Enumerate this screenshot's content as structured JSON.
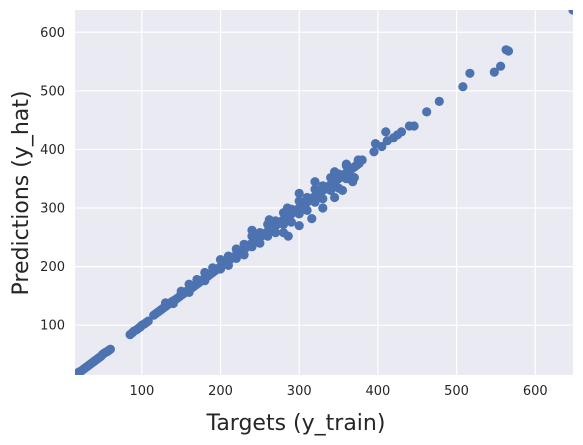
{
  "chart_data": {
    "type": "scatter",
    "title": "",
    "xlabel": "Targets (y_train)",
    "ylabel": "Predictions (y_hat)",
    "xlim": [
      15,
      648
    ],
    "ylim": [
      15,
      638
    ],
    "xticks": [
      100,
      200,
      300,
      400,
      500,
      600
    ],
    "yticks": [
      100,
      200,
      300,
      400,
      500,
      600
    ],
    "grid": true,
    "colors": {
      "background": "#eaeaf2",
      "grid": "#ffffff",
      "points": "#4c72b0"
    },
    "series": [
      {
        "points": [
          [
            18,
            18
          ],
          [
            20,
            20
          ],
          [
            22,
            21
          ],
          [
            24,
            23
          ],
          [
            26,
            25
          ],
          [
            28,
            27
          ],
          [
            30,
            29
          ],
          [
            32,
            31
          ],
          [
            34,
            33
          ],
          [
            36,
            35
          ],
          [
            38,
            37
          ],
          [
            40,
            39
          ],
          [
            42,
            41
          ],
          [
            44,
            43
          ],
          [
            46,
            45
          ],
          [
            48,
            47
          ],
          [
            50,
            50
          ],
          [
            52,
            52
          ],
          [
            54,
            54
          ],
          [
            56,
            55
          ],
          [
            58,
            57
          ],
          [
            60,
            59
          ],
          [
            85,
            84
          ],
          [
            88,
            87
          ],
          [
            90,
            90
          ],
          [
            93,
            92
          ],
          [
            96,
            95
          ],
          [
            98,
            97
          ],
          [
            100,
            100
          ],
          [
            103,
            102
          ],
          [
            106,
            105
          ],
          [
            108,
            107
          ],
          [
            115,
            117
          ],
          [
            118,
            120
          ],
          [
            121,
            123
          ],
          [
            124,
            126
          ],
          [
            127,
            129
          ],
          [
            130,
            132
          ],
          [
            133,
            135
          ],
          [
            136,
            138
          ],
          [
            139,
            141
          ],
          [
            142,
            143
          ],
          [
            145,
            146
          ],
          [
            148,
            149
          ],
          [
            151,
            152
          ],
          [
            154,
            155
          ],
          [
            157,
            158
          ],
          [
            160,
            160
          ],
          [
            163,
            163
          ],
          [
            166,
            166
          ],
          [
            169,
            169
          ],
          [
            172,
            172
          ],
          [
            175,
            175
          ],
          [
            178,
            178
          ],
          [
            181,
            181
          ],
          [
            184,
            184
          ],
          [
            187,
            187
          ],
          [
            190,
            190
          ],
          [
            193,
            193
          ],
          [
            196,
            196
          ],
          [
            199,
            199
          ],
          [
            202,
            202
          ],
          [
            205,
            205
          ],
          [
            208,
            208
          ],
          [
            211,
            211
          ],
          [
            214,
            214
          ],
          [
            217,
            217
          ],
          [
            220,
            220
          ],
          [
            223,
            223
          ],
          [
            226,
            226
          ],
          [
            229,
            229
          ],
          [
            232,
            232
          ],
          [
            235,
            235
          ],
          [
            238,
            238
          ],
          [
            241,
            241
          ],
          [
            244,
            244
          ],
          [
            247,
            247
          ],
          [
            250,
            250
          ],
          [
            253,
            253
          ],
          [
            256,
            256
          ],
          [
            259,
            259
          ],
          [
            262,
            262
          ],
          [
            265,
            265
          ],
          [
            268,
            268
          ],
          [
            271,
            271
          ],
          [
            274,
            274
          ],
          [
            277,
            277
          ],
          [
            280,
            280
          ],
          [
            283,
            283
          ],
          [
            286,
            286
          ],
          [
            289,
            289
          ],
          [
            292,
            292
          ],
          [
            295,
            295
          ],
          [
            298,
            298
          ],
          [
            301,
            301
          ],
          [
            304,
            304
          ],
          [
            307,
            307
          ],
          [
            310,
            310
          ],
          [
            313,
            313
          ],
          [
            316,
            316
          ],
          [
            319,
            319
          ],
          [
            322,
            322
          ],
          [
            325,
            325
          ],
          [
            328,
            328
          ],
          [
            331,
            331
          ],
          [
            334,
            334
          ],
          [
            337,
            337
          ],
          [
            340,
            340
          ],
          [
            343,
            343
          ],
          [
            346,
            346
          ],
          [
            349,
            349
          ],
          [
            352,
            352
          ],
          [
            355,
            355
          ],
          [
            358,
            358
          ],
          [
            361,
            361
          ],
          [
            364,
            364
          ],
          [
            367,
            367
          ],
          [
            370,
            370
          ],
          [
            373,
            373
          ],
          [
            376,
            376
          ],
          [
            130,
            138
          ],
          [
            150,
            158
          ],
          [
            170,
            178
          ],
          [
            190,
            198
          ],
          [
            210,
            218
          ],
          [
            230,
            238
          ],
          [
            250,
            258
          ],
          [
            270,
            278
          ],
          [
            290,
            298
          ],
          [
            310,
            318
          ],
          [
            330,
            338
          ],
          [
            350,
            358
          ],
          [
            140,
            137
          ],
          [
            160,
            156
          ],
          [
            180,
            176
          ],
          [
            200,
            196
          ],
          [
            220,
            214
          ],
          [
            240,
            234
          ],
          [
            260,
            252
          ],
          [
            280,
            272
          ],
          [
            300,
            290
          ],
          [
            320,
            310
          ],
          [
            340,
            330
          ],
          [
            360,
            350
          ],
          [
            160,
            170
          ],
          [
            180,
            190
          ],
          [
            200,
            212
          ],
          [
            220,
            230
          ],
          [
            240,
            252
          ],
          [
            260,
            272
          ],
          [
            280,
            292
          ],
          [
            300,
            312
          ],
          [
            320,
            332
          ],
          [
            340,
            352
          ],
          [
            360,
            372
          ],
          [
            210,
            202
          ],
          [
            230,
            220
          ],
          [
            250,
            240
          ],
          [
            270,
            258
          ],
          [
            290,
            276
          ],
          [
            310,
            296
          ],
          [
            330,
            316
          ],
          [
            350,
            334
          ],
          [
            370,
            352
          ],
          [
            240,
            262
          ],
          [
            262,
            280
          ],
          [
            285,
            300
          ],
          [
            300,
            325
          ],
          [
            320,
            345
          ],
          [
            345,
            362
          ],
          [
            360,
            375
          ],
          [
            375,
            382
          ],
          [
            380,
            382
          ],
          [
            280,
            258
          ],
          [
            286,
            252
          ],
          [
            300,
            270
          ],
          [
            316,
            282
          ],
          [
            330,
            300
          ],
          [
            345,
            318
          ],
          [
            355,
            330
          ],
          [
            368,
            345
          ],
          [
            395,
            396
          ],
          [
            397,
            410
          ],
          [
            405,
            405
          ],
          [
            410,
            430
          ],
          [
            412,
            415
          ],
          [
            420,
            420
          ],
          [
            425,
            425
          ],
          [
            430,
            430
          ],
          [
            440,
            440
          ],
          [
            446,
            440
          ],
          [
            462,
            464
          ],
          [
            478,
            482
          ],
          [
            508,
            507
          ],
          [
            517,
            530
          ],
          [
            548,
            532
          ],
          [
            556,
            542
          ],
          [
            563,
            570
          ],
          [
            566,
            568
          ],
          [
            648,
            638
          ]
        ]
      }
    ]
  }
}
